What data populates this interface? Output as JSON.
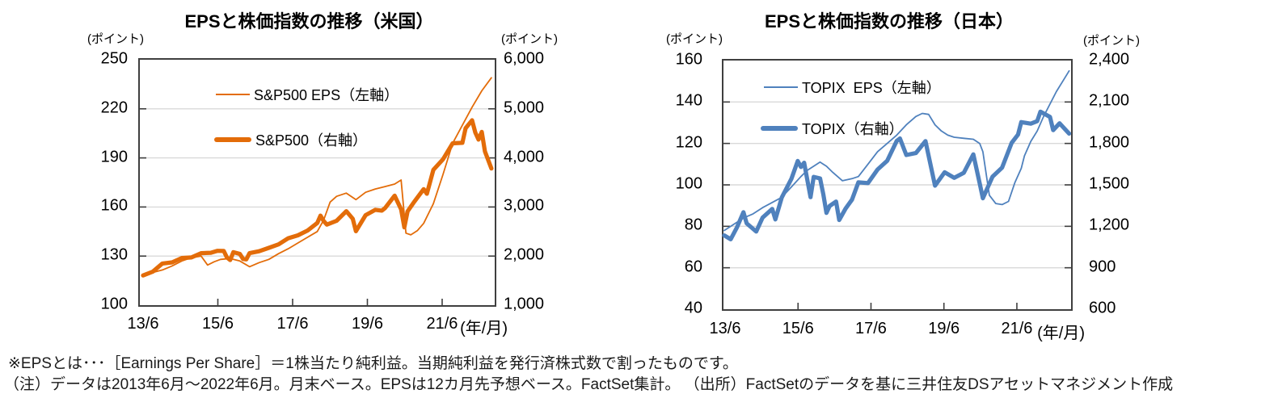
{
  "colors": {
    "us_line": "#E36C09",
    "jp_line": "#4F81BD",
    "grid": "#D9D9D9",
    "plot_border": "#3F3F3F",
    "text": "#000000",
    "background": "#FFFFFF"
  },
  "notes": {
    "line1": "※EPSとは･･･［Earnings Per Share］＝1株当たり純利益。当期純利益を発行済株式数で割ったものです。",
    "line2": "（注）データは2013年6月～2022年6月。月末ベース。EPSは12カ月先予想ベース。FactSet集計。 （出所）FactSetのデータを基に三井住友DSアセットマネジメント作成"
  },
  "chart_data": [
    {
      "type": "line",
      "title": "EPSと株価指数の推移（米国）",
      "left_axis": {
        "caption": "(ポイント)",
        "range": [
          100,
          250
        ],
        "ticks": [
          250,
          220,
          190,
          160,
          130,
          100
        ]
      },
      "right_axis": {
        "caption": "(ポイント)",
        "range": [
          1000,
          6000
        ],
        "ticks": [
          6000,
          5000,
          4000,
          3000,
          2000,
          1000
        ]
      },
      "x_axis": {
        "caption": "(年/月)",
        "tick_labels": [
          "13/6",
          "15/6",
          "17/6",
          "19/6",
          "21/6"
        ],
        "tick_months": [
          0,
          24,
          48,
          72,
          96
        ],
        "range_months": [
          0,
          108
        ],
        "start": "2013/6",
        "end": "2022/6"
      },
      "grid": true,
      "legend_position": "upper-left-inside",
      "series": [
        {
          "name": "S&P500 EPS（左軸）",
          "axis": "left",
          "style": "thin",
          "color": "#E36C09",
          "x": [
            0,
            3,
            6,
            9,
            12,
            15,
            18,
            20,
            22,
            24,
            27,
            30,
            33,
            36,
            39,
            42,
            45,
            48,
            51,
            54,
            56,
            58,
            60,
            63,
            66,
            69,
            72,
            75,
            78,
            80,
            81.5,
            83,
            85,
            87,
            90,
            93,
            96,
            99,
            102,
            105,
            108
          ],
          "y": [
            118,
            120,
            121.5,
            124,
            127,
            129,
            130,
            124.5,
            126.5,
            128,
            128.5,
            127,
            123.5,
            126,
            128,
            131.5,
            134.5,
            138,
            141.5,
            145,
            152,
            163,
            166.5,
            168.5,
            164.5,
            169,
            171,
            172.5,
            174,
            176.5,
            144,
            143,
            145.5,
            150,
            162,
            180,
            199,
            210,
            221,
            231,
            239
          ]
        },
        {
          "name": "S&P500（右軸）",
          "axis": "right",
          "style": "thick",
          "color": "#E36C09",
          "x": [
            0,
            3,
            6,
            9,
            12,
            15,
            18,
            21,
            23,
            25,
            26,
            27,
            28,
            30,
            31,
            32,
            33,
            36,
            39,
            42,
            45,
            48,
            51,
            54,
            55,
            56,
            57,
            60,
            63,
            65,
            66,
            69,
            72,
            74,
            75,
            78,
            80,
            81,
            82,
            84,
            87,
            88,
            90,
            93,
            96,
            99,
            100,
            102,
            103,
            104,
            105,
            106,
            108
          ],
          "y": [
            1606,
            1682,
            1848,
            1872,
            1960,
            1972,
            2059,
            2068,
            2107,
            2104,
            1972,
            1920,
            2079,
            2044,
            1940,
            1932,
            2060,
            2099,
            2168,
            2239,
            2363,
            2423,
            2519,
            2674,
            2824,
            2714,
            2641,
            2718,
            2914,
            2760,
            2507,
            2834,
            2942,
            2926,
            2977,
            3231,
            2954,
            2585,
            2912,
            3100,
            3363,
            3270,
            3756,
            3973,
            4298,
            4308,
            4605,
            4766,
            4516,
            4374,
            4530,
            4132,
            3785
          ]
        }
      ]
    },
    {
      "type": "line",
      "title": "EPSと株価指数の推移（日本）",
      "left_axis": {
        "caption": "(ポイント)",
        "range": [
          40,
          160
        ],
        "ticks": [
          160,
          140,
          120,
          100,
          80,
          60,
          40
        ]
      },
      "right_axis": {
        "caption": "(ポイント)",
        "range": [
          600,
          2400
        ],
        "ticks": [
          2400,
          2100,
          1800,
          1500,
          1200,
          900,
          600
        ]
      },
      "x_axis": {
        "caption": "(年/月)",
        "tick_labels": [
          "13/6",
          "15/6",
          "17/6",
          "19/6",
          "21/6"
        ],
        "tick_months": [
          0,
          24,
          48,
          72,
          96
        ],
        "range_months": [
          0,
          108
        ],
        "start": "2013/6",
        "end": "2022/6"
      },
      "grid": true,
      "legend_position": "upper-left-inside",
      "series": [
        {
          "name": "TOPIX  EPS（左軸）",
          "axis": "left",
          "style": "thin",
          "color": "#4F81BD",
          "x": [
            0,
            3,
            6,
            9,
            12,
            15,
            18,
            21,
            24,
            26,
            28,
            30,
            32,
            34,
            37,
            40,
            42,
            45,
            48,
            51,
            54,
            57,
            60,
            62,
            64,
            66,
            68,
            70,
            72,
            75,
            78,
            80,
            81,
            83,
            85,
            87,
            89,
            91,
            93,
            94,
            96,
            98,
            100,
            102,
            104,
            106,
            108
          ],
          "y": [
            78,
            81,
            84,
            86,
            89,
            91.5,
            94,
            99,
            104,
            107,
            109,
            111,
            109,
            106,
            102,
            103,
            104,
            110,
            116,
            120,
            124,
            129,
            133,
            134.5,
            134,
            129,
            126,
            124,
            123,
            122.5,
            122,
            120,
            116,
            95,
            91,
            90.5,
            92,
            101,
            108,
            114,
            121,
            126,
            133,
            139,
            145,
            150,
            155
          ]
        },
        {
          "name": "TOPIX（右軸）",
          "axis": "right",
          "style": "thick",
          "color": "#4F81BD",
          "x": [
            0,
            2,
            4,
            6,
            7,
            10,
            12,
            15,
            16,
            18,
            21,
            23,
            24,
            25,
            26,
            27,
            28,
            30,
            31,
            32,
            33,
            35,
            36,
            38,
            40,
            42,
            45,
            48,
            51,
            54,
            55,
            57,
            60,
            63,
            66,
            69,
            72,
            75,
            78,
            80,
            81,
            84,
            87,
            90,
            92,
            93,
            96,
            98,
            99,
            102,
            103,
            105,
            108
          ],
          "y": [
            1134,
            1106,
            1194,
            1302,
            1221,
            1162,
            1263,
            1326,
            1250,
            1408,
            1543,
            1673,
            1630,
            1660,
            1537,
            1411,
            1558,
            1547,
            1432,
            1297,
            1347,
            1379,
            1246,
            1329,
            1393,
            1518,
            1513,
            1611,
            1674,
            1818,
            1836,
            1716,
            1730,
            1817,
            1494,
            1591,
            1551,
            1587,
            1721,
            1510,
            1403,
            1559,
            1625,
            1804,
            1864,
            1954,
            1943,
            1961,
            2030,
            1992,
            1896,
            1946,
            1871
          ]
        }
      ]
    }
  ]
}
